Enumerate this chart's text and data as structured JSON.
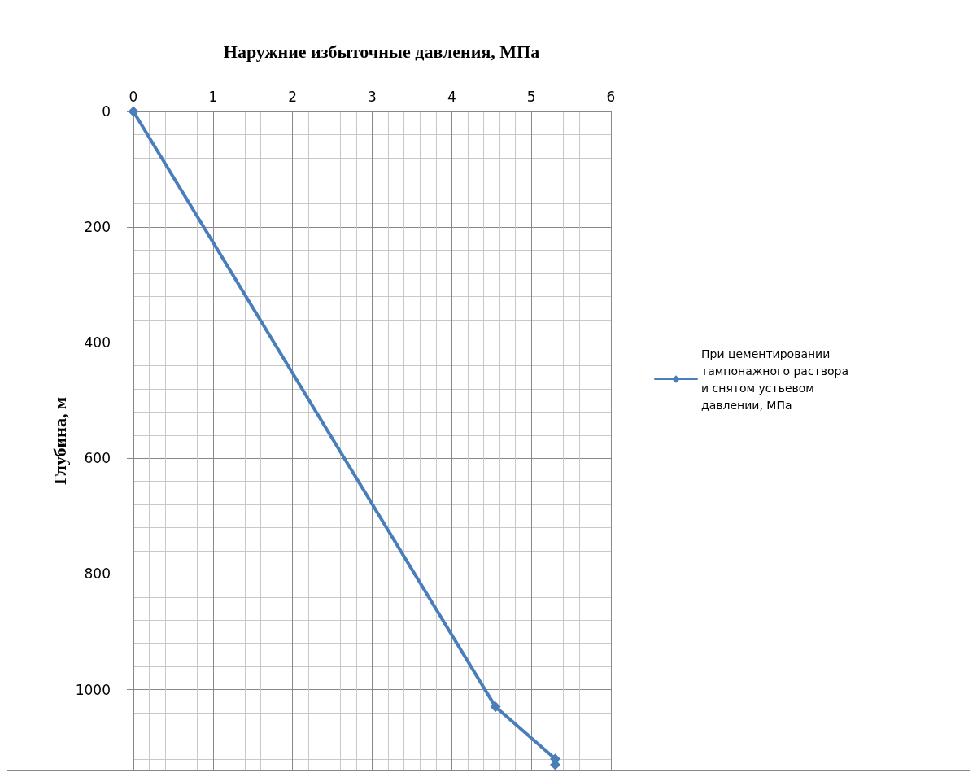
{
  "chart_data": {
    "type": "line",
    "title": "Наружние избыточные давления, МПа",
    "ylabel": "Глубина, м",
    "x": [
      0,
      4.55,
      5.3,
      5.3
    ],
    "series": [
      {
        "name": "При цементировании тампонажного раствора и снятом устьевом давлении, МПа",
        "color": "#4a7ebb",
        "values": [
          0,
          1030,
          1120,
          1130
        ]
      }
    ],
    "xlim": [
      0,
      6
    ],
    "xticks": [
      0,
      1,
      2,
      3,
      4,
      5,
      6
    ],
    "ylim": [
      1140,
      0
    ],
    "yticks": [
      0,
      200,
      400,
      600,
      800,
      1000
    ],
    "grid": true,
    "legend": "right",
    "marker": "diamond",
    "line_style": "solid"
  }
}
